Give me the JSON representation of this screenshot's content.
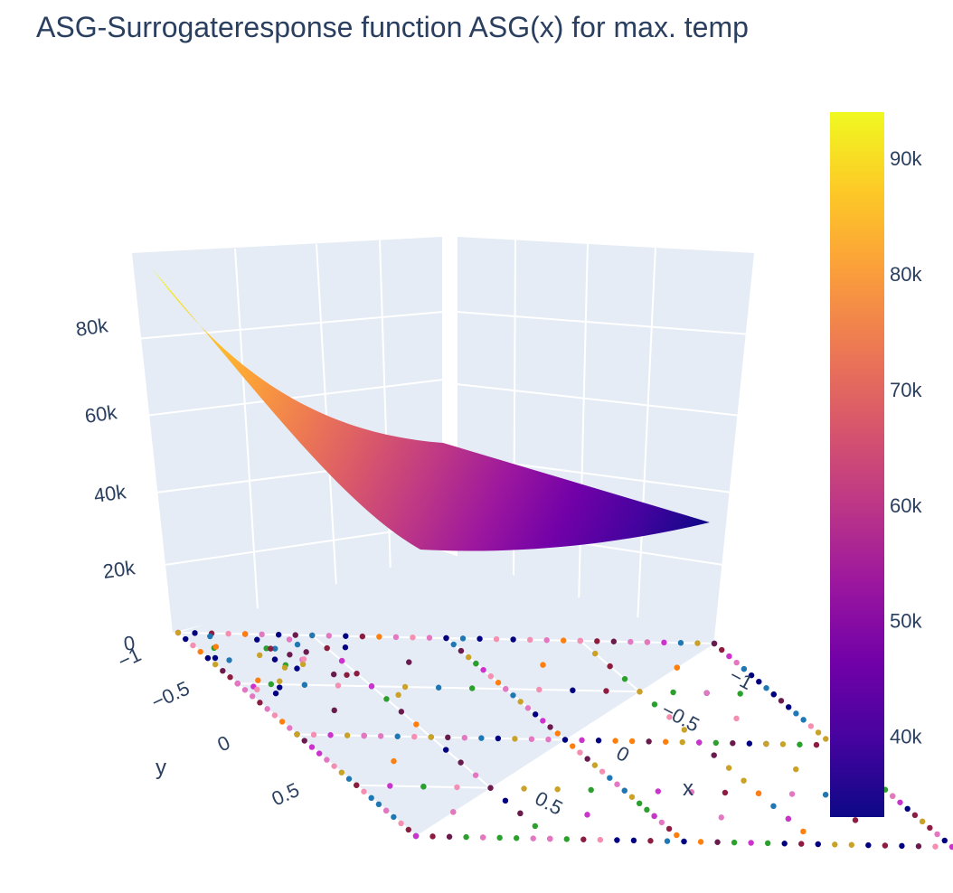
{
  "chart_data": {
    "type": "surface",
    "title": "ASG-Surrogateresponse function ASG(x) for max. temp",
    "xlabel": "x",
    "ylabel": "y",
    "zlabel": "",
    "x_ticks": [
      "−1",
      "−0.5",
      "0",
      "0.5"
    ],
    "y_ticks": [
      "−1",
      "−0.5",
      "0",
      "0.5"
    ],
    "z_ticks": [
      "0",
      "20k",
      "40k",
      "60k",
      "80k"
    ],
    "xlim": [
      -1,
      1
    ],
    "ylim": [
      -1,
      1
    ],
    "zlim": [
      0,
      95000
    ],
    "surface": {
      "corners": [
        {
          "x": -1,
          "y": -1,
          "z": 94000
        },
        {
          "x": 1,
          "y": -1,
          "z": 35000
        },
        {
          "x": -1,
          "y": 1,
          "z": 36000
        },
        {
          "x": 1,
          "y": 1,
          "z": 33000
        }
      ],
      "colorscale": "plasma"
    },
    "colorbar": {
      "min": 33000,
      "max": 94000,
      "ticks": [
        "40k",
        "50k",
        "60k",
        "70k",
        "80k",
        "90k"
      ],
      "tick_values": [
        40000,
        50000,
        60000,
        70000,
        80000,
        90000
      ],
      "colors": [
        "#0d0887",
        "#46039f",
        "#7201a8",
        "#9c179e",
        "#bd3786",
        "#d8576b",
        "#ed7953",
        "#fb9f3a",
        "#fdca26",
        "#f0f921"
      ]
    },
    "sample_points": {
      "z": 0,
      "palette": [
        "#e377c2",
        "#1f77b4",
        "#8c1d40",
        "#c9a227",
        "#000080",
        "#2ca02c",
        "#ff7f0e",
        "#f48fb1",
        "#6a1b4d",
        "#cc33cc"
      ]
    },
    "grid": true
  }
}
